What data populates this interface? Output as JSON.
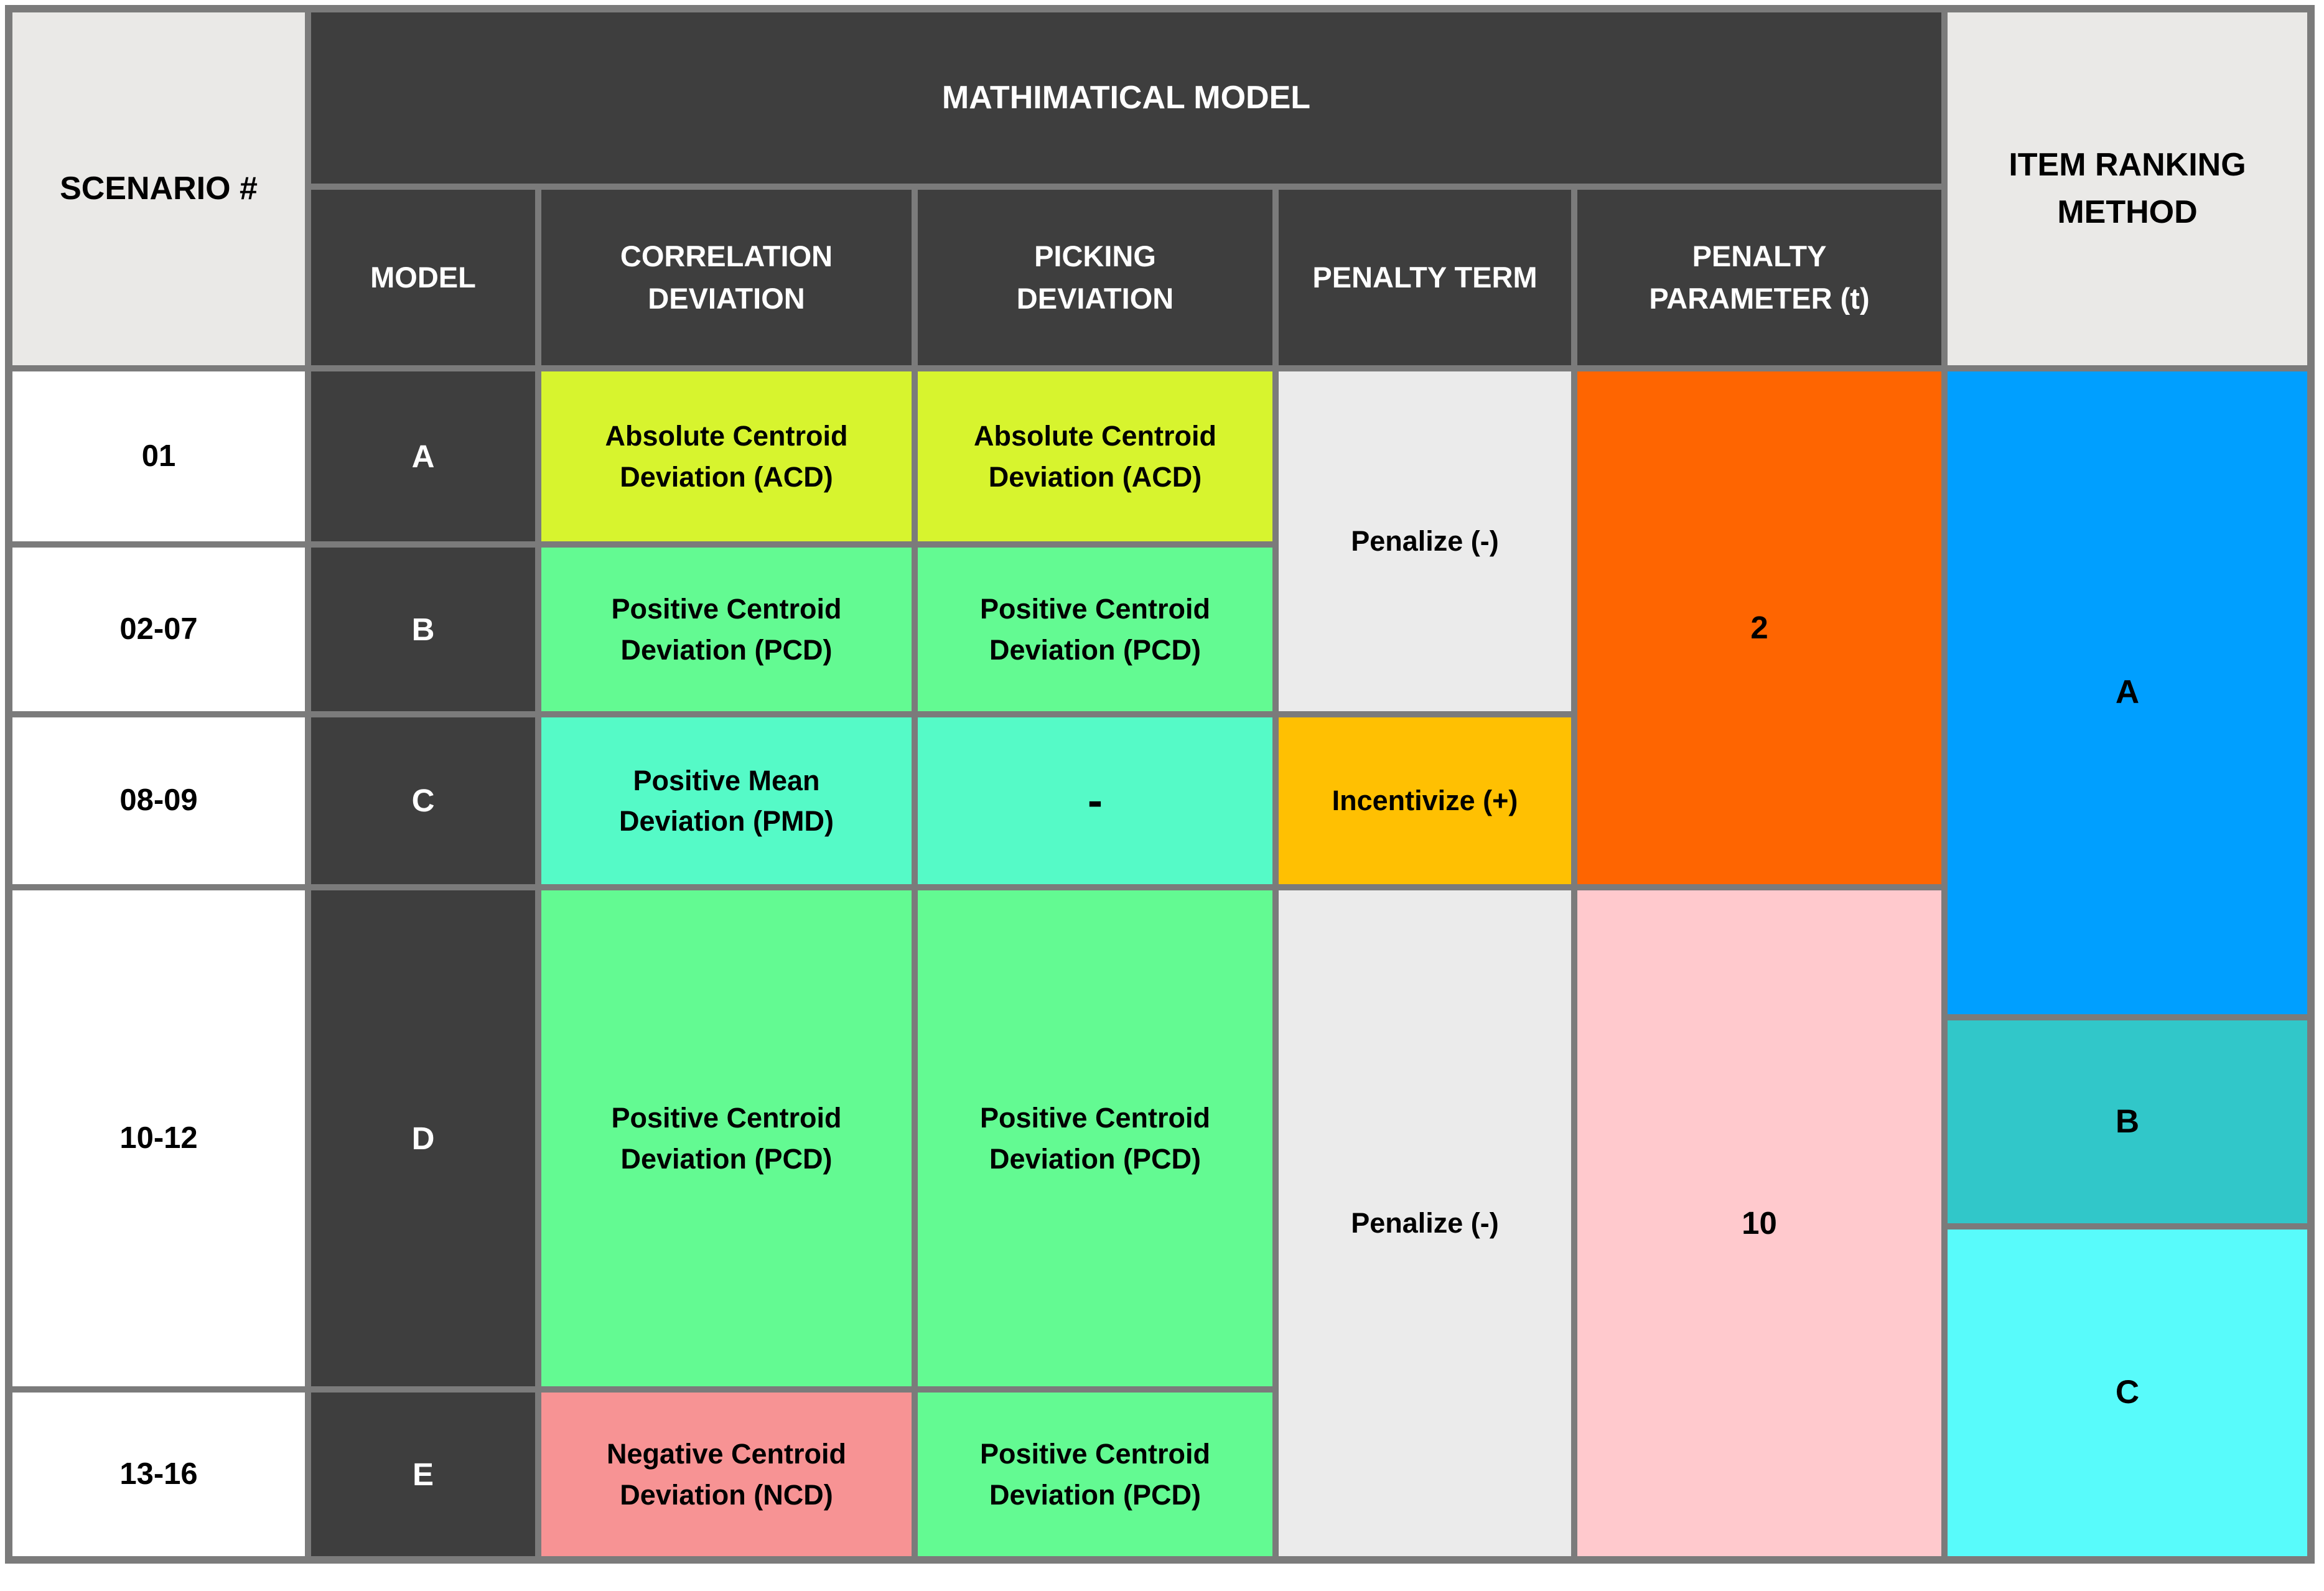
{
  "palette": {
    "border": "#7b7b7b",
    "dark": "#3e3e3e",
    "header_gray": "#eae9e7",
    "white": "#ffffff",
    "penalty_gray": "#ebebeb",
    "chartreuse": "#d7f42e",
    "green": "#63fa92",
    "turquoise": "#55fac7",
    "amber": "#ffc002",
    "orange": "#fe6501",
    "pink": "#ffc9cd",
    "salmon": "#f79394",
    "blue": "#009fff",
    "teal": "#31c7c9",
    "cyan": "#58fbfb"
  },
  "chart_data": {
    "type": "table",
    "header": {
      "scenario_label": "SCENARIO #",
      "math_model_label": "MATHIMATICAL MODEL",
      "item_ranking_label": "ITEM RANKING METHOD",
      "sub_headers": [
        "MODEL",
        "CORRELATION DEVIATION",
        "PICKING DEVIATION",
        "PENALTY TERM",
        "PENALTY PARAMETER (t)"
      ]
    },
    "rows": [
      {
        "scenario": "01",
        "model": "A",
        "correlation_deviation": "Absolute Centroid Deviation (ACD)",
        "picking_deviation": "Absolute Centroid Deviation (ACD)"
      },
      {
        "scenario": "02-07",
        "model": "B",
        "correlation_deviation": "Positive Centroid Deviation (PCD)",
        "picking_deviation": "Positive Centroid Deviation (PCD)"
      },
      {
        "scenario": "08-09",
        "model": "C",
        "correlation_deviation": "Positive Mean Deviation (PMD)",
        "picking_deviation": "-"
      },
      {
        "scenario": "10-12",
        "model": "D",
        "correlation_deviation": "Positive Centroid Deviation (PCD)",
        "picking_deviation": "Positive Centroid Deviation (PCD)"
      },
      {
        "scenario": "13-16",
        "model": "E",
        "correlation_deviation": "Negative Centroid Deviation (NCD)",
        "picking_deviation": "Positive Centroid Deviation (PCD)"
      }
    ],
    "penalty_term": [
      {
        "label": "Penalize (-)",
        "applies_to_scenarios": "01, 02-07"
      },
      {
        "label": "Incentivize (+)",
        "applies_to_scenarios": "08-09"
      },
      {
        "label": "Penalize (-)",
        "applies_to_scenarios": "10-12, 13-16"
      }
    ],
    "penalty_parameter_t": [
      {
        "value": "2",
        "applies_to_scenarios": "01, 02-07, 08-09"
      },
      {
        "value": "10",
        "applies_to_scenarios": "10-12, 13-16"
      }
    ],
    "item_ranking_methods": [
      {
        "label": "A"
      },
      {
        "label": "B"
      },
      {
        "label": "C"
      }
    ]
  }
}
